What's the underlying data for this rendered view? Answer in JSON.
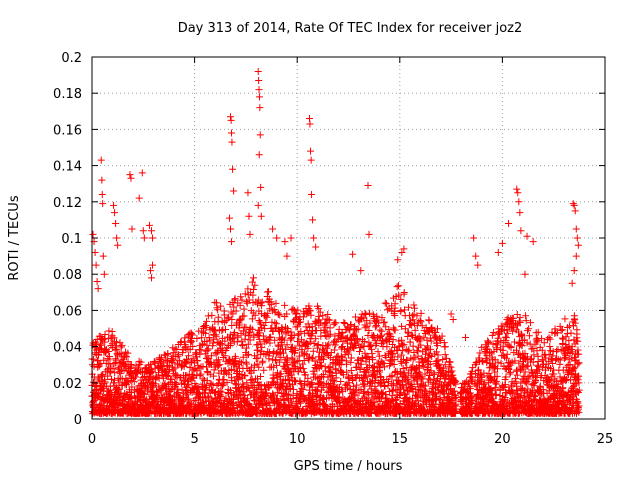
{
  "chart_data": {
    "type": "scatter",
    "title": "Day 313 of 2014, Rate Of TEC Index for receiver joz2",
    "xlabel": "GPS time / hours",
    "ylabel": "ROTI / TECUs",
    "xlim": [
      0,
      25
    ],
    "ylim": [
      0,
      0.2
    ],
    "x_ticks": [
      0,
      5,
      10,
      15,
      20,
      25
    ],
    "x_tick_labels": [
      "0",
      "5",
      "10",
      "15",
      "20",
      "25"
    ],
    "y_ticks": [
      0,
      0.02,
      0.04,
      0.06,
      0.08,
      0.1,
      0.12,
      0.14,
      0.16,
      0.18,
      0.2
    ],
    "y_tick_labels": [
      "0",
      "0.02",
      "0.04",
      "0.06",
      "0.08",
      "0.1",
      "0.12",
      "0.14",
      "0.16",
      "0.18",
      "0.2"
    ],
    "grid": true,
    "marker": "+",
    "series": [
      {
        "name": "ROTI",
        "color": "#ff0000",
        "points": [
          [
            0.05,
            0.102
          ],
          [
            0.1,
            0.098
          ],
          [
            0.15,
            0.092
          ],
          [
            0.2,
            0.085
          ],
          [
            0.25,
            0.076
          ],
          [
            0.3,
            0.072
          ],
          [
            0.45,
            0.143
          ],
          [
            0.48,
            0.132
          ],
          [
            0.5,
            0.124
          ],
          [
            0.52,
            0.119
          ],
          [
            0.55,
            0.09
          ],
          [
            0.6,
            0.08
          ],
          [
            1.05,
            0.118
          ],
          [
            1.1,
            0.114
          ],
          [
            1.15,
            0.108
          ],
          [
            1.2,
            0.1
          ],
          [
            1.25,
            0.096
          ],
          [
            1.85,
            0.135
          ],
          [
            1.9,
            0.133
          ],
          [
            1.95,
            0.105
          ],
          [
            2.3,
            0.122
          ],
          [
            2.45,
            0.136
          ],
          [
            2.5,
            0.104
          ],
          [
            2.55,
            0.1
          ],
          [
            2.8,
            0.107
          ],
          [
            2.9,
            0.104
          ],
          [
            2.95,
            0.1
          ],
          [
            2.85,
            0.082
          ],
          [
            2.9,
            0.078
          ],
          [
            2.95,
            0.085
          ],
          [
            6.75,
            0.167
          ],
          [
            6.78,
            0.165
          ],
          [
            6.8,
            0.158
          ],
          [
            6.82,
            0.153
          ],
          [
            6.85,
            0.138
          ],
          [
            6.9,
            0.126
          ],
          [
            6.7,
            0.111
          ],
          [
            6.75,
            0.105
          ],
          [
            6.8,
            0.098
          ],
          [
            7.6,
            0.125
          ],
          [
            7.65,
            0.112
          ],
          [
            7.7,
            0.102
          ],
          [
            8.1,
            0.192
          ],
          [
            8.12,
            0.187
          ],
          [
            8.14,
            0.182
          ],
          [
            8.16,
            0.178
          ],
          [
            8.18,
            0.172
          ],
          [
            8.2,
            0.157
          ],
          [
            8.15,
            0.146
          ],
          [
            8.22,
            0.128
          ],
          [
            8.1,
            0.118
          ],
          [
            8.25,
            0.112
          ],
          [
            8.8,
            0.105
          ],
          [
            9.0,
            0.1
          ],
          [
            9.4,
            0.098
          ],
          [
            9.7,
            0.1
          ],
          [
            9.5,
            0.09
          ],
          [
            10.6,
            0.166
          ],
          [
            10.62,
            0.163
          ],
          [
            10.65,
            0.148
          ],
          [
            10.68,
            0.143
          ],
          [
            10.7,
            0.124
          ],
          [
            10.75,
            0.11
          ],
          [
            10.8,
            0.1
          ],
          [
            10.9,
            0.095
          ],
          [
            12.7,
            0.091
          ],
          [
            13.1,
            0.082
          ],
          [
            13.45,
            0.129
          ],
          [
            13.5,
            0.102
          ],
          [
            14.9,
            0.088
          ],
          [
            15.1,
            0.092
          ],
          [
            15.2,
            0.094
          ],
          [
            18.6,
            0.1
          ],
          [
            18.7,
            0.09
          ],
          [
            18.8,
            0.085
          ],
          [
            19.8,
            0.092
          ],
          [
            20.0,
            0.097
          ],
          [
            20.3,
            0.108
          ],
          [
            20.7,
            0.127
          ],
          [
            20.75,
            0.125
          ],
          [
            20.8,
            0.12
          ],
          [
            20.85,
            0.114
          ],
          [
            20.9,
            0.104
          ],
          [
            21.2,
            0.101
          ],
          [
            21.5,
            0.098
          ],
          [
            21.1,
            0.08
          ],
          [
            23.45,
            0.119
          ],
          [
            23.5,
            0.118
          ],
          [
            23.55,
            0.115
          ],
          [
            23.6,
            0.105
          ],
          [
            23.65,
            0.1
          ],
          [
            23.7,
            0.096
          ],
          [
            23.6,
            0.09
          ],
          [
            23.5,
            0.082
          ],
          [
            23.4,
            0.075
          ],
          [
            17.5,
            0.058
          ],
          [
            17.6,
            0.055
          ],
          [
            18.2,
            0.045
          ]
        ]
      }
    ],
    "background_density_profile": {
      "description": "dense cloud of low ROTI values across the day, upper envelope in TECUs by hour",
      "x": [
        0,
        1,
        2,
        3,
        4,
        5,
        6,
        7,
        8,
        9,
        10,
        11,
        12,
        13,
        14,
        15,
        16,
        17,
        17.8,
        18.2,
        19,
        20,
        21,
        22,
        23,
        23.7
      ],
      "upper": [
        0.045,
        0.05,
        0.032,
        0.032,
        0.04,
        0.05,
        0.065,
        0.07,
        0.08,
        0.065,
        0.06,
        0.065,
        0.052,
        0.058,
        0.06,
        0.075,
        0.06,
        0.048,
        0.02,
        0.02,
        0.04,
        0.055,
        0.06,
        0.045,
        0.055,
        0.06
      ],
      "gaps": [
        [
          17.75,
          17.95
        ],
        [
          18.55,
          18.65
        ]
      ]
    }
  }
}
